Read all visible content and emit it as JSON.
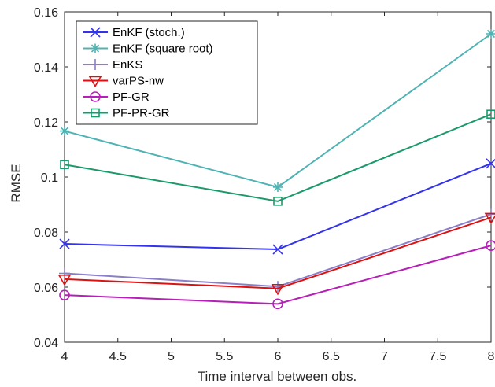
{
  "chart_data": {
    "type": "line",
    "title": "",
    "xlabel": "Time interval between obs.",
    "ylabel": "RMSE",
    "xlim": [
      4,
      8
    ],
    "ylim": [
      0.04,
      0.16
    ],
    "x": [
      4,
      6,
      8
    ],
    "x_ticks": [
      "4",
      "4.5",
      "5",
      "5.5",
      "6",
      "6.5",
      "7",
      "7.5",
      "8"
    ],
    "x_tick_values": [
      4,
      4.5,
      5,
      5.5,
      6,
      6.5,
      7,
      7.5,
      8
    ],
    "y_ticks": [
      "0.04",
      "0.06",
      "0.08",
      "0.1",
      "0.12",
      "0.14",
      "0.16"
    ],
    "y_tick_values": [
      0.04,
      0.06,
      0.08,
      0.1,
      0.12,
      0.14,
      0.16
    ],
    "grid": false,
    "legend_position": "top-left",
    "series": [
      {
        "name": "EnKF (stoch.)",
        "values": [
          0.0757,
          0.0737,
          0.1049
        ],
        "color": "#3333ee",
        "marker": "x"
      },
      {
        "name": "EnKF (square root)",
        "values": [
          0.1167,
          0.0963,
          0.152
        ],
        "color": "#4fb3b3",
        "marker": "star"
      },
      {
        "name": "EnKS",
        "values": [
          0.065,
          0.0602,
          0.0865
        ],
        "color": "#8a7fc8",
        "marker": "plus"
      },
      {
        "name": "varPS-nw",
        "values": [
          0.0629,
          0.0595,
          0.0853
        ],
        "color": "#dd1111",
        "marker": "triangle-down"
      },
      {
        "name": "PF-GR",
        "values": [
          0.0571,
          0.0539,
          0.0751
        ],
        "color": "#b81fb8",
        "marker": "circle"
      },
      {
        "name": "PF-PR-GR",
        "values": [
          0.1045,
          0.0912,
          0.1228
        ],
        "color": "#1a9a6a",
        "marker": "square"
      }
    ]
  }
}
